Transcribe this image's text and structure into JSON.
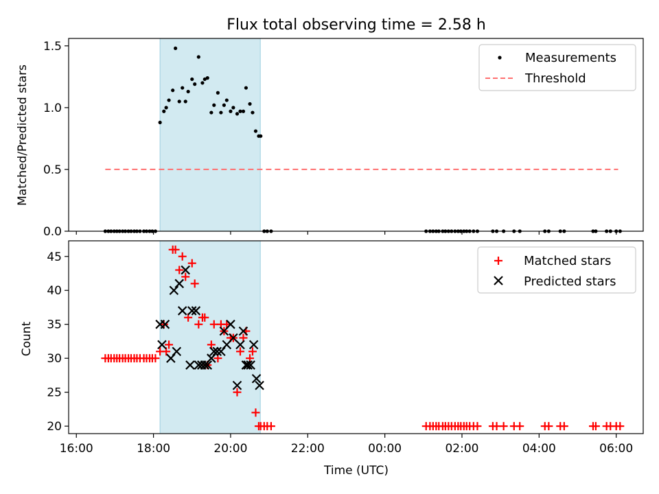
{
  "chart_data": [
    {
      "type": "scatter",
      "title": "Flux total observing time = 2.58 h",
      "ylabel": "Matched/Predicted stars",
      "xlabel": "",
      "xlim": [
        -0.2,
        14.7
      ],
      "ylim": [
        0,
        1.56
      ],
      "yticks": [
        0.0,
        0.5,
        1.0,
        1.5
      ],
      "ytick_labels": [
        "0.0",
        "0.5",
        "1.0",
        "1.5"
      ],
      "shaded_window": [
        2.17,
        4.77
      ],
      "series": [
        {
          "name": "Measurements",
          "marker": "dot",
          "color": "#000000",
          "x": [
            2.17,
            2.27,
            2.33,
            2.4,
            2.5,
            2.57,
            2.67,
            2.75,
            2.83,
            2.9,
            3.0,
            3.07,
            3.17,
            3.27,
            3.33,
            3.4,
            3.5,
            3.57,
            3.67,
            3.75,
            3.83,
            3.9,
            4.0,
            4.07,
            4.17,
            4.25,
            4.33,
            4.4,
            4.5,
            4.57,
            4.65,
            4.73,
            4.78
          ],
          "y": [
            0.88,
            0.97,
            1.0,
            1.06,
            1.14,
            1.48,
            1.05,
            1.16,
            1.05,
            1.13,
            1.23,
            1.19,
            1.41,
            1.2,
            1.23,
            1.24,
            0.96,
            1.02,
            1.12,
            0.96,
            1.02,
            1.06,
            0.97,
            1.0,
            0.95,
            0.97,
            0.97,
            1.16,
            1.03,
            0.96,
            0.81,
            0.77,
            0.77
          ],
          "zero_x": [
            0.75,
            0.83,
            0.9,
            0.98,
            1.05,
            1.12,
            1.2,
            1.27,
            1.35,
            1.42,
            1.5,
            1.57,
            1.65,
            1.75,
            1.82,
            1.9,
            1.97,
            2.05,
            4.87,
            4.95,
            5.05,
            9.07,
            9.17,
            9.25,
            9.33,
            9.4,
            9.5,
            9.57,
            9.65,
            9.73,
            9.82,
            9.9,
            9.97,
            10.05,
            10.12,
            10.2,
            10.3,
            10.4,
            10.8,
            10.9,
            11.08,
            11.35,
            11.5,
            12.15,
            12.25,
            12.55,
            12.65,
            13.4,
            13.47,
            13.75,
            13.85,
            14.0,
            14.1
          ],
          "zero_y": 0
        },
        {
          "name": "Threshold",
          "style": "dashed",
          "color": "#ff7070",
          "x": [
            0.75,
            14.05
          ],
          "y": [
            0.5,
            0.5
          ]
        }
      ],
      "legend": [
        "Measurements",
        "Threshold"
      ],
      "legend_loc": "top-right"
    },
    {
      "type": "scatter",
      "title": "",
      "ylabel": "Count",
      "xlabel": "Time (UTC)",
      "xlim": [
        -0.2,
        14.7
      ],
      "ylim": [
        18.9,
        47.3
      ],
      "yticks": [
        20,
        25,
        30,
        35,
        40,
        45
      ],
      "ytick_labels": [
        "20",
        "25",
        "30",
        "35",
        "40",
        "45"
      ],
      "xticks": [
        0,
        2,
        4,
        6,
        8,
        10,
        12,
        14
      ],
      "xtick_labels": [
        "16:00",
        "18:00",
        "20:00",
        "22:00",
        "00:00",
        "02:00",
        "04:00",
        "06:00"
      ],
      "shaded_window": [
        2.17,
        4.77
      ],
      "series": [
        {
          "name": "Matched stars",
          "marker": "plus",
          "color": "#ff0000",
          "x": [
            0.75,
            0.83,
            0.9,
            0.98,
            1.05,
            1.12,
            1.2,
            1.27,
            1.35,
            1.42,
            1.5,
            1.57,
            1.65,
            1.75,
            1.82,
            1.9,
            1.97,
            2.05,
            2.17,
            2.27,
            2.33,
            2.4,
            2.5,
            2.57,
            2.67,
            2.75,
            2.83,
            2.9,
            3.0,
            3.07,
            3.17,
            3.27,
            3.33,
            3.4,
            3.5,
            3.57,
            3.67,
            3.75,
            3.83,
            3.9,
            4.0,
            4.07,
            4.17,
            4.25,
            4.33,
            4.4,
            4.5,
            4.57,
            4.65,
            4.73,
            4.78,
            4.87,
            4.95,
            5.05,
            9.07,
            9.17,
            9.25,
            9.33,
            9.4,
            9.5,
            9.57,
            9.65,
            9.73,
            9.82,
            9.9,
            9.97,
            10.05,
            10.12,
            10.2,
            10.3,
            10.4,
            10.8,
            10.9,
            11.08,
            11.35,
            11.5,
            12.15,
            12.25,
            12.55,
            12.65,
            13.4,
            13.47,
            13.75,
            13.85,
            14.0,
            14.1
          ],
          "y": [
            30,
            30,
            30,
            30,
            30,
            30,
            30,
            30,
            30,
            30,
            30,
            30,
            30,
            30,
            30,
            30,
            30,
            30,
            31,
            35,
            31,
            32,
            46,
            46,
            43,
            45,
            42,
            36,
            44,
            41,
            35,
            36,
            36,
            29,
            32,
            35,
            30,
            35,
            34,
            35,
            33,
            33,
            25,
            31,
            33,
            34,
            30,
            31,
            22,
            20,
            20,
            20,
            20,
            20,
            20,
            20,
            20,
            20,
            20,
            20,
            20,
            20,
            20,
            20,
            20,
            20,
            20,
            20,
            20,
            20,
            20,
            20,
            20,
            20,
            20,
            20,
            20,
            20,
            20,
            20,
            20,
            20,
            20,
            20,
            20,
            20
          ]
        },
        {
          "name": "Predicted stars",
          "marker": "x",
          "color": "#000000",
          "x": [
            2.17,
            2.22,
            2.3,
            2.45,
            2.53,
            2.6,
            2.67,
            2.75,
            2.83,
            2.95,
            3.0,
            3.1,
            3.17,
            3.25,
            3.33,
            3.4,
            3.5,
            3.57,
            3.65,
            3.75,
            3.83,
            3.9,
            4.0,
            4.07,
            4.17,
            4.25,
            4.33,
            4.4,
            4.45,
            4.52,
            4.6,
            4.67,
            4.75
          ],
          "y": [
            35,
            32,
            35,
            30,
            40,
            31,
            41,
            37,
            43,
            29,
            37,
            37,
            29,
            29,
            29,
            29,
            30,
            31,
            31,
            31,
            34,
            32,
            35,
            33,
            26,
            32,
            34,
            29,
            29,
            29,
            32,
            27,
            26
          ]
        }
      ],
      "legend": [
        "Matched stars",
        "Predicted stars"
      ],
      "legend_loc": "top-right"
    }
  ]
}
